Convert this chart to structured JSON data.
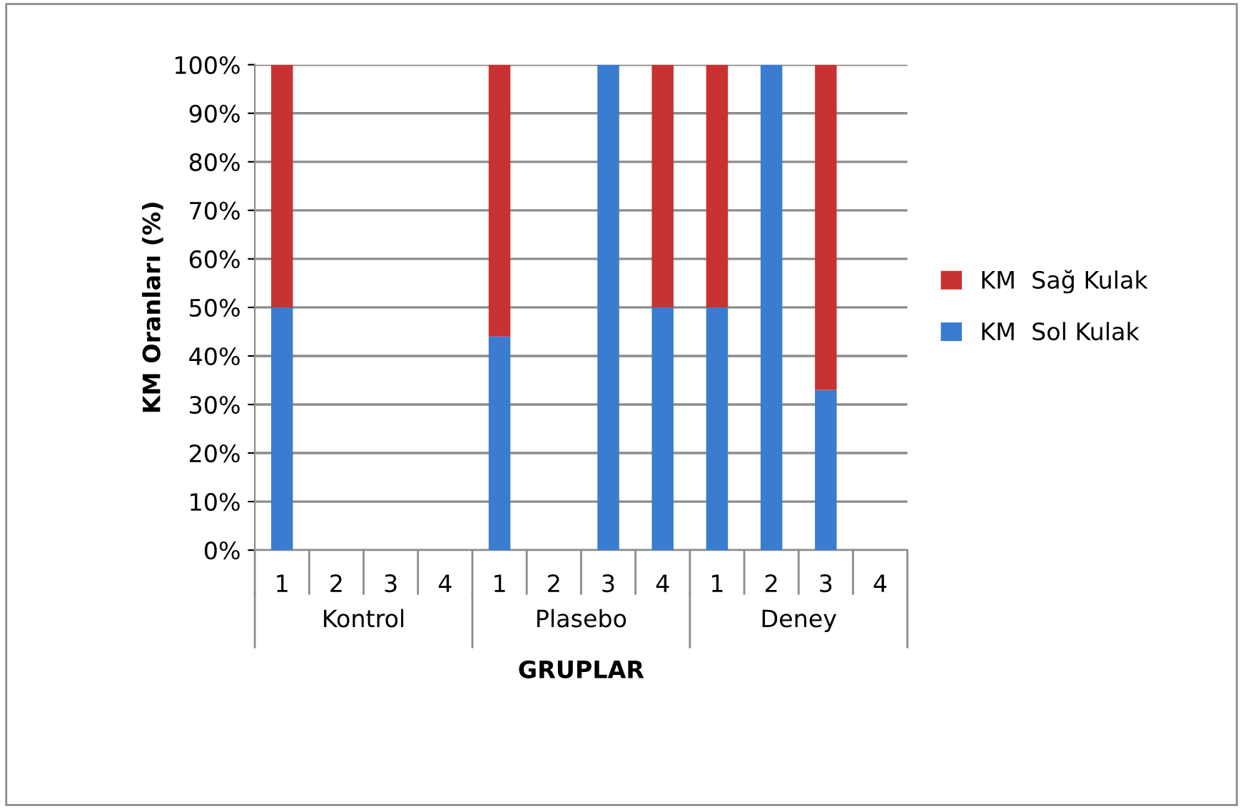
{
  "chart_data": {
    "type": "bar",
    "stacked": true,
    "xlabel": "GRUPLAR",
    "ylabel": "KM Oranları (%)",
    "categories": [
      "1",
      "2",
      "3",
      "4",
      "1",
      "2",
      "3",
      "4",
      "1",
      "2",
      "3",
      "4"
    ],
    "series": [
      {
        "name": "KM  Sol Kulak",
        "color": "#3a7dd0",
        "values": [
          50,
          0,
          0,
          0,
          44,
          0,
          100,
          50,
          50,
          100,
          33,
          0
        ]
      },
      {
        "name": "KM  Sağ Kulak",
        "color": "#c83232",
        "values": [
          50,
          0,
          0,
          0,
          56,
          0,
          0,
          50,
          50,
          0,
          67,
          0
        ]
      }
    ],
    "ylim": [
      0,
      100
    ],
    "yticks": [
      {
        "value": 0,
        "label": "0%"
      },
      {
        "value": 10,
        "label": "10%"
      },
      {
        "value": 20,
        "label": "20%"
      },
      {
        "value": 30,
        "label": "30%"
      },
      {
        "value": 40,
        "label": "40%"
      },
      {
        "value": 50,
        "label": "50%"
      },
      {
        "value": 60,
        "label": "60%"
      },
      {
        "value": 70,
        "label": "70%"
      },
      {
        "value": 80,
        "label": "80%"
      },
      {
        "value": 90,
        "label": "90%"
      },
      {
        "value": 100,
        "label": "100%"
      }
    ],
    "annotations": [
      "Kontrol",
      "Plasebo",
      "Deney"
    ],
    "grid": "y",
    "legend": "right"
  }
}
